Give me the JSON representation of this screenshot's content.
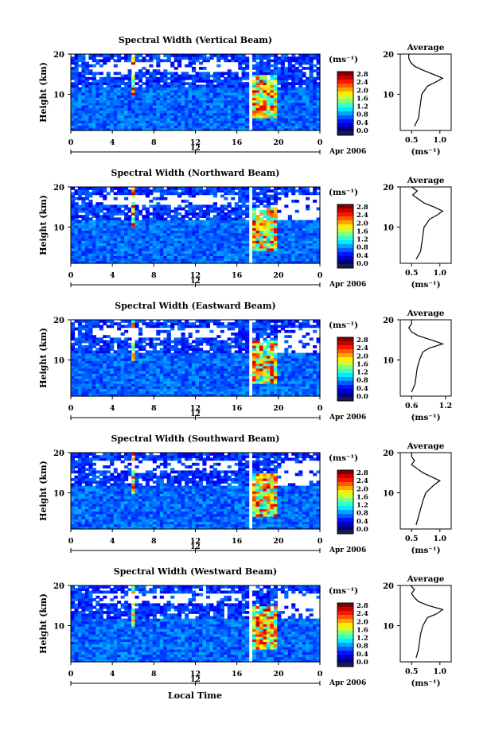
{
  "figure": {
    "xlabel": "Local Time",
    "date_label": "Apr 2006",
    "date_marker": "12"
  },
  "colorbar": {
    "unit": "(ms⁻¹)",
    "ticks": [
      "2.8",
      "2.4",
      "2.0",
      "1.6",
      "1.2",
      "0.8",
      "0.4",
      "0.0"
    ]
  },
  "chart_data": [
    {
      "type": "heatmap",
      "title": "Spectral Width (Vertical Beam)",
      "ylabel": "Height (km)",
      "x_ticks": [
        "0",
        "4",
        "8",
        "12",
        "16",
        "20",
        "0"
      ],
      "y_ticks": [
        "20",
        "10"
      ],
      "xlim": [
        0,
        24
      ],
      "ylim": [
        1,
        20
      ],
      "value_range": [
        0.0,
        3.0
      ],
      "gap_hours": [
        17.0,
        17.5
      ],
      "enhanced_hours": [
        6.0,
        17.6,
        18.5,
        19.0,
        19.6
      ],
      "average_profile": {
        "title": "Average",
        "xlabel": "(ms⁻¹)",
        "x_ticks": [
          "0.5",
          "1.0"
        ],
        "y_ticks": [
          "20",
          "10"
        ],
        "xlim": [
          0.3,
          1.2
        ],
        "heights": [
          2,
          4,
          6,
          8,
          10,
          12,
          13,
          14,
          15,
          16,
          17,
          18,
          19,
          20
        ],
        "values": [
          0.55,
          0.62,
          0.64,
          0.66,
          0.68,
          0.78,
          0.92,
          1.05,
          0.88,
          0.7,
          0.55,
          0.48,
          0.45,
          0.45
        ]
      }
    },
    {
      "type": "heatmap",
      "title": "Spectral Width (Northward Beam)",
      "ylabel": "Height (km)",
      "x_ticks": [
        "0",
        "4",
        "8",
        "12",
        "16",
        "20",
        "0"
      ],
      "y_ticks": [
        "20",
        "10"
      ],
      "xlim": [
        0,
        24
      ],
      "ylim": [
        1,
        20
      ],
      "value_range": [
        0.0,
        3.0
      ],
      "gap_hours": [
        17.0,
        17.5
      ],
      "enhanced_hours": [
        6.0,
        17.6,
        18.5,
        19.0,
        19.6
      ],
      "average_profile": {
        "title": "Average",
        "xlabel": "(ms⁻¹)",
        "x_ticks": [
          "0.5",
          "1.0"
        ],
        "y_ticks": [
          "20",
          "10"
        ],
        "xlim": [
          0.3,
          1.2
        ],
        "heights": [
          2,
          4,
          6,
          8,
          10,
          12,
          13,
          14,
          15,
          16,
          17,
          18,
          19,
          20
        ],
        "values": [
          0.58,
          0.66,
          0.68,
          0.7,
          0.72,
          0.82,
          0.95,
          1.05,
          0.9,
          0.72,
          0.62,
          0.52,
          0.6,
          0.5
        ]
      }
    },
    {
      "type": "heatmap",
      "title": "Spectral Width (Eastward Beam)",
      "ylabel": "Height (km)",
      "x_ticks": [
        "0",
        "4",
        "8",
        "12",
        "16",
        "20",
        "0"
      ],
      "y_ticks": [
        "20",
        "10"
      ],
      "xlim": [
        0,
        24
      ],
      "ylim": [
        1,
        20
      ],
      "value_range": [
        0.0,
        3.0
      ],
      "gap_hours": [
        17.0,
        17.5
      ],
      "enhanced_hours": [
        6.0,
        17.6,
        18.5,
        19.0,
        19.6
      ],
      "average_profile": {
        "title": "Average",
        "xlabel": "(ms⁻¹)",
        "x_ticks": [
          "0.6",
          "1.2"
        ],
        "y_ticks": [
          "20",
          "10"
        ],
        "xlim": [
          0.4,
          1.3
        ],
        "heights": [
          2,
          4,
          6,
          8,
          10,
          12,
          13,
          14,
          15,
          16,
          17,
          18,
          19,
          20
        ],
        "values": [
          0.6,
          0.66,
          0.68,
          0.7,
          0.74,
          0.8,
          0.92,
          1.15,
          0.95,
          0.72,
          0.6,
          0.55,
          0.6,
          0.6
        ]
      }
    },
    {
      "type": "heatmap",
      "title": "Spectral Width (Southward Beam)",
      "ylabel": "Height (km)",
      "x_ticks": [
        "0",
        "4",
        "8",
        "12",
        "16",
        "20",
        "0"
      ],
      "y_ticks": [
        "20",
        "10"
      ],
      "xlim": [
        0,
        24
      ],
      "ylim": [
        1,
        20
      ],
      "value_range": [
        0.0,
        3.0
      ],
      "gap_hours": [
        17.0,
        17.5
      ],
      "enhanced_hours": [
        6.0,
        17.6,
        18.5,
        19.0,
        19.6
      ],
      "average_profile": {
        "title": "Average",
        "xlabel": "(ms⁻¹)",
        "x_ticks": [
          "0.5",
          "1.0"
        ],
        "y_ticks": [
          "20",
          "10"
        ],
        "xlim": [
          0.3,
          1.2
        ],
        "heights": [
          2,
          4,
          6,
          8,
          10,
          12,
          13,
          14,
          15,
          16,
          17,
          18,
          19,
          20
        ],
        "values": [
          0.58,
          0.62,
          0.66,
          0.7,
          0.75,
          0.9,
          1.0,
          0.85,
          0.7,
          0.6,
          0.5,
          0.55,
          0.5,
          0.5
        ]
      }
    },
    {
      "type": "heatmap",
      "title": "Spectral Width (Westward Beam)",
      "ylabel": "Height (km)",
      "x_ticks": [
        "0",
        "4",
        "8",
        "12",
        "16",
        "20",
        "0"
      ],
      "y_ticks": [
        "20",
        "10"
      ],
      "xlim": [
        0,
        24
      ],
      "ylim": [
        1,
        20
      ],
      "value_range": [
        0.0,
        3.0
      ],
      "gap_hours": [
        17.0,
        17.5
      ],
      "enhanced_hours": [
        6.0,
        17.6,
        18.5,
        19.0,
        19.6
      ],
      "average_profile": {
        "title": "Average",
        "xlabel": "(ms⁻¹)",
        "x_ticks": [
          "0.5",
          "1.0"
        ],
        "y_ticks": [
          "20",
          "10"
        ],
        "xlim": [
          0.3,
          1.2
        ],
        "heights": [
          2,
          4,
          6,
          8,
          10,
          12,
          13,
          14,
          15,
          16,
          17,
          18,
          19,
          20
        ],
        "values": [
          0.58,
          0.62,
          0.64,
          0.66,
          0.7,
          0.78,
          0.95,
          1.05,
          0.8,
          0.62,
          0.55,
          0.5,
          0.55,
          0.48
        ]
      }
    }
  ]
}
